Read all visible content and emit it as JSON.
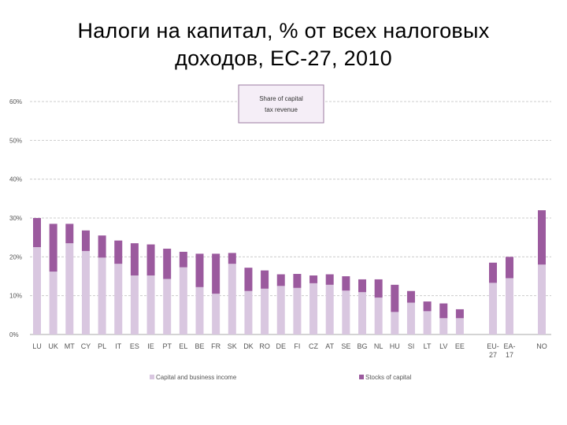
{
  "title": {
    "line1": "Налоги на капитал, % от всех налоговых",
    "line2": "доходов, ЕС-27, 2010"
  },
  "chart_data": {
    "type": "bar",
    "stacked": true,
    "categories": [
      "LU",
      "UK",
      "MT",
      "CY",
      "PL",
      "IT",
      "ES",
      "IE",
      "PT",
      "EL",
      "BE",
      "FR",
      "SK",
      "DK",
      "RO",
      "DE",
      "FI",
      "CZ",
      "AT",
      "SE",
      "BG",
      "NL",
      "HU",
      "SI",
      "LT",
      "LV",
      "EE",
      "EU-27",
      "EA-17",
      "NO"
    ],
    "series": [
      {
        "name": "Capital and business income",
        "color": "#d9c7e0",
        "values": [
          22.5,
          16.2,
          23.5,
          21.5,
          19.8,
          18.2,
          15.2,
          15.2,
          14.3,
          17.3,
          12.2,
          10.5,
          18.2,
          11.2,
          11.8,
          12.5,
          12.0,
          13.2,
          12.8,
          11.3,
          10.9,
          9.5,
          5.8,
          8.2,
          6.0,
          4.2,
          4.2,
          13.3,
          14.5,
          18.0
        ]
      },
      {
        "name": "Stocks of capital",
        "color": "#9b5a9e",
        "values": [
          7.5,
          12.3,
          5.0,
          5.3,
          5.7,
          6.0,
          8.3,
          8.0,
          7.8,
          4.0,
          8.6,
          10.3,
          2.8,
          6.0,
          4.7,
          3.0,
          3.6,
          2.0,
          2.7,
          3.7,
          3.3,
          4.7,
          7.0,
          3.0,
          2.5,
          3.8,
          2.3,
          5.2,
          5.5,
          14.0
        ]
      }
    ],
    "yaxis": {
      "ticks": [
        "0%",
        "10%",
        "20%",
        "30%",
        "40%",
        "50%",
        "60%"
      ],
      "min": 0,
      "max": 60
    },
    "grid": true,
    "legend_position": "bottom",
    "box_label": "Share of capital tax revenue"
  }
}
